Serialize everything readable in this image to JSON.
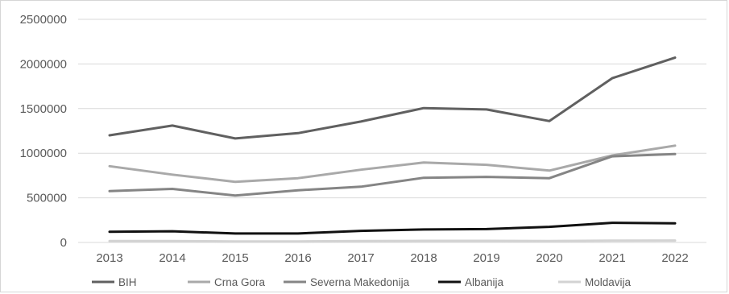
{
  "chart_data": {
    "type": "line",
    "title": "",
    "xlabel": "",
    "ylabel": "",
    "ylim": [
      0,
      2500000
    ],
    "yticks": [
      "0",
      "500000",
      "1000000",
      "1500000",
      "2000000",
      "2500000"
    ],
    "categories": [
      "2013",
      "2014",
      "2015",
      "2016",
      "2017",
      "2018",
      "2019",
      "2020",
      "2021",
      "2022"
    ],
    "grid": true,
    "legend_position": "bottom",
    "series": [
      {
        "name": "BIH",
        "color": "#606060",
        "values": [
          1200000,
          1310000,
          1165000,
          1225000,
          1355000,
          1505000,
          1490000,
          1360000,
          1840000,
          2070000
        ]
      },
      {
        "name": "Crna Gora",
        "color": "#a9a9a9",
        "values": [
          855000,
          760000,
          680000,
          720000,
          815000,
          895000,
          870000,
          805000,
          975000,
          1085000
        ]
      },
      {
        "name": "Severna Makedonija",
        "color": "#858585",
        "values": [
          575000,
          600000,
          525000,
          585000,
          625000,
          725000,
          735000,
          720000,
          965000,
          990000
        ]
      },
      {
        "name": "Albanija",
        "color": "#111111",
        "values": [
          120000,
          125000,
          100000,
          100000,
          130000,
          145000,
          150000,
          175000,
          220000,
          215000
        ]
      },
      {
        "name": "Moldavija",
        "color": "#d3d3d3",
        "values": [
          15000,
          15000,
          12000,
          12000,
          15000,
          18000,
          18000,
          15000,
          20000,
          22000
        ]
      }
    ]
  }
}
